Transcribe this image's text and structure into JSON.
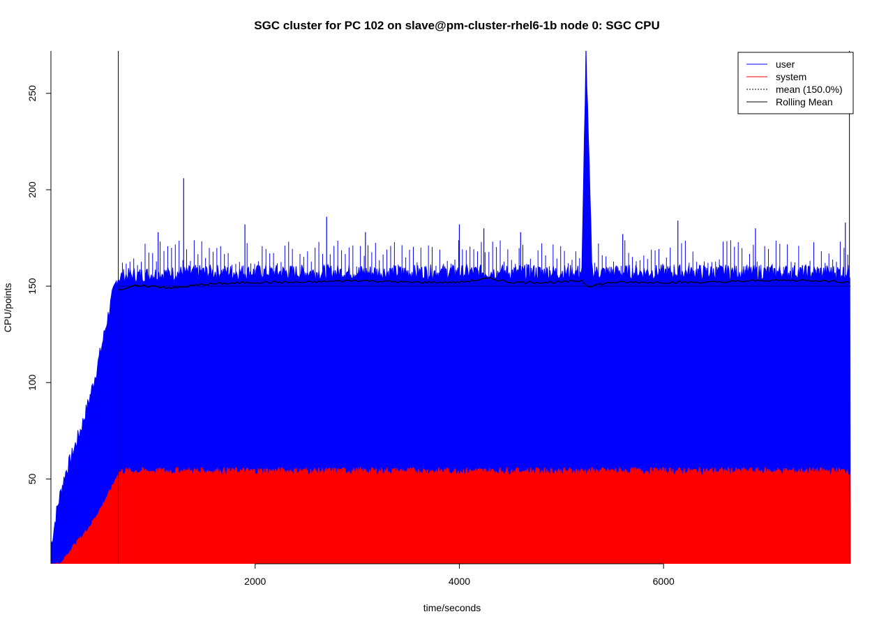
{
  "chart_data": {
    "type": "area",
    "title": "SGC cluster for PC 102 on slave@pm-cluster-rhel6-1b node 0: SGC CPU",
    "xlabel": "time/seconds",
    "ylabel": "CPU/points",
    "xlim": [
      0,
      7850
    ],
    "ylim": [
      6,
      272
    ],
    "x_ticks": [
      2000,
      4000,
      6000
    ],
    "y_ticks": [
      50,
      100,
      150,
      200,
      250
    ],
    "grid": false,
    "legend_position": "top-right",
    "vertical_markers": [
      660,
      7820
    ],
    "series": [
      {
        "name": "user",
        "color": "#0000ff",
        "x": [
          0,
          30,
          60,
          100,
          150,
          200,
          250,
          300,
          350,
          400,
          450,
          500,
          550,
          600,
          650,
          660,
          700,
          1000,
          1500,
          2000,
          2500,
          3000,
          3500,
          4000,
          4500,
          5000,
          5200,
          5240,
          5300,
          5500,
          6000,
          6500,
          7000,
          7500,
          7830
        ],
        "values": [
          15,
          25,
          35,
          45,
          55,
          62,
          70,
          78,
          87,
          97,
          108,
          120,
          133,
          145,
          155,
          155,
          156,
          157,
          158,
          158,
          158,
          158,
          158,
          158,
          158,
          158,
          158,
          272,
          158,
          158,
          158,
          158,
          158,
          158,
          158
        ],
        "peaks": [
          [
            1300,
            206
          ],
          [
            1050,
            178
          ],
          [
            1900,
            182
          ],
          [
            2700,
            186
          ],
          [
            3080,
            178
          ],
          [
            4000,
            182
          ],
          [
            4240,
            180
          ],
          [
            4600,
            178
          ],
          [
            5240,
            272
          ],
          [
            5600,
            177
          ],
          [
            6140,
            184
          ],
          [
            6900,
            180
          ],
          [
            7780,
            183
          ]
        ]
      },
      {
        "name": "system",
        "color": "#ff0000",
        "x": [
          0,
          100,
          150,
          200,
          300,
          400,
          500,
          600,
          650,
          660,
          700,
          1000,
          2000,
          3000,
          4000,
          5000,
          6000,
          7000,
          7830
        ],
        "values": [
          6,
          6,
          10,
          14,
          20,
          27,
          36,
          46,
          52,
          53,
          54,
          54,
          54,
          54,
          54,
          54,
          54,
          54,
          54
        ]
      },
      {
        "name": "mean (150.0%)",
        "color": "#000000",
        "style": "dotted",
        "value": 150
      },
      {
        "name": "Rolling Mean",
        "color": "#000000",
        "x": [
          660,
          800,
          1000,
          1200,
          1500,
          2000,
          2500,
          3000,
          3500,
          4000,
          4300,
          4500,
          5000,
          5200,
          5260,
          5500,
          6000,
          6500,
          7000,
          7500,
          7830
        ],
        "values": [
          148,
          150,
          150,
          149,
          151,
          152,
          152,
          153,
          152,
          152,
          154,
          152,
          152,
          153,
          150,
          152,
          152,
          152,
          153,
          153,
          152
        ]
      }
    ]
  }
}
